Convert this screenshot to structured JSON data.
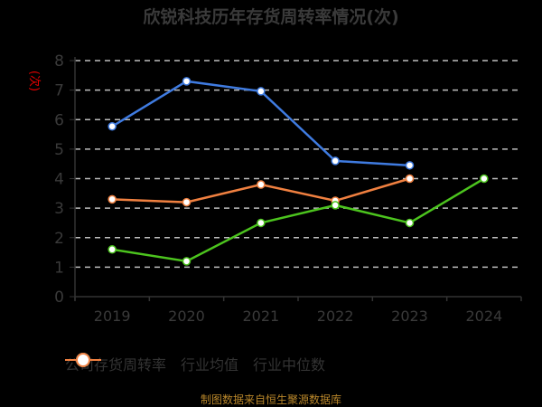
{
  "title": "欣锐科技历年存货周转率情况(次)",
  "y_axis_unit": "(次)",
  "source": "制图数据来自恒生聚源数据库",
  "legend": [
    {
      "label": "公司存货周转率",
      "color": "#4cc41e"
    },
    {
      "label": "行业均值",
      "color": "#3f7be0"
    },
    {
      "label": "行业中位数",
      "color": "#f08040"
    }
  ],
  "chart_data": {
    "type": "line",
    "title": "欣锐科技历年存货周转率情况(次)",
    "xlabel": "",
    "ylabel": "(次)",
    "categories": [
      "2019",
      "2020",
      "2021",
      "2022",
      "2023",
      "2024"
    ],
    "ylim": [
      0,
      8
    ],
    "yticks": [
      0,
      1,
      2,
      3,
      4,
      5,
      6,
      7,
      8
    ],
    "grid": "horizontal dashed",
    "legend_position": "bottom",
    "series": [
      {
        "name": "公司存货周转率",
        "color": "#4cc41e",
        "values": [
          1.6,
          1.2,
          2.5,
          3.1,
          2.5,
          4.0
        ]
      },
      {
        "name": "行业均值",
        "color": "#3f7be0",
        "values": [
          5.77,
          7.3,
          6.96,
          4.6,
          4.45,
          null
        ]
      },
      {
        "name": "行业中位数",
        "color": "#f08040",
        "values": [
          3.3,
          3.2,
          3.8,
          3.25,
          4.0,
          null
        ]
      }
    ]
  }
}
